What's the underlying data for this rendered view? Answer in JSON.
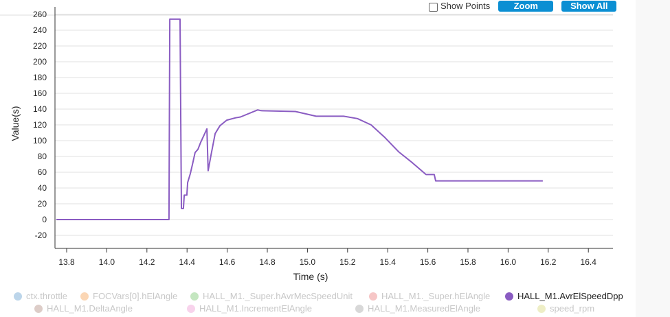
{
  "toolbar": {
    "show_points_label": "Show Points",
    "zoom_label": "Zoom",
    "show_all_label": "Show All"
  },
  "chart_data": {
    "type": "line",
    "xlabel": "Time (s)",
    "ylabel": "Value(s)",
    "xlim": [
      13.75,
      16.5
    ],
    "ylim": [
      -35,
      265
    ],
    "xticks": [
      "13.8",
      "14.0",
      "14.2",
      "14.4",
      "14.6",
      "14.8",
      "15.0",
      "15.2",
      "15.4",
      "15.6",
      "15.8",
      "16.0",
      "16.2",
      "16.4"
    ],
    "yticks": [
      "260",
      "240",
      "220",
      "200",
      "180",
      "160",
      "140",
      "120",
      "100",
      "80",
      "60",
      "40",
      "20",
      "0",
      "-20"
    ],
    "grid": true,
    "legend_position": "bottom",
    "legend": [
      {
        "name": "ctx.throttle",
        "color": "#bcd5ea",
        "active": false
      },
      {
        "name": "FOCVars[0].hElAngle",
        "color": "#fbd6b4",
        "active": false
      },
      {
        "name": "HALL_M1._Super.hAvrMecSpeedUnit",
        "color": "#c4e6c0",
        "active": false
      },
      {
        "name": "HALL_M1._Super.hElAngle",
        "color": "#f6c6c6",
        "active": false
      },
      {
        "name": "HALL_M1.AvrElSpeedDpp",
        "color": "#8a5cc2",
        "active": true
      },
      {
        "name": "HALL_M1.DeltaAngle",
        "color": "#ddcdc8",
        "active": false
      },
      {
        "name": "HALL_M1.IncrementElAngle",
        "color": "#f8d3ec",
        "active": false
      },
      {
        "name": "HALL_M1.MeasuredElAngle",
        "color": "#d8d8d8",
        "active": false
      },
      {
        "name": "speed_rpm",
        "color": "#eeeec6",
        "active": false
      }
    ],
    "series": [
      {
        "name": "HALL_M1.AvrElSpeedDpp",
        "color": "#8a5cc2",
        "x": [
          13.749,
          14.31,
          14.314,
          14.365,
          14.372,
          14.382,
          14.386,
          14.399,
          14.403,
          14.416,
          14.427,
          14.44,
          14.454,
          14.468,
          14.499,
          14.505,
          14.519,
          14.54,
          14.564,
          14.598,
          14.642,
          14.666,
          14.752,
          14.769,
          14.94,
          15.043,
          15.18,
          15.249,
          15.317,
          15.386,
          15.454,
          15.523,
          15.591,
          15.632,
          15.639,
          16.173
        ],
        "y": [
          0,
          0,
          254,
          254,
          14,
          14,
          31,
          31,
          47,
          58,
          70,
          85,
          89,
          98,
          115,
          62,
          81,
          109,
          119,
          126,
          129,
          130,
          139,
          138,
          137,
          131,
          131,
          128,
          120,
          104,
          86,
          72,
          57,
          57,
          49,
          49
        ]
      }
    ]
  }
}
